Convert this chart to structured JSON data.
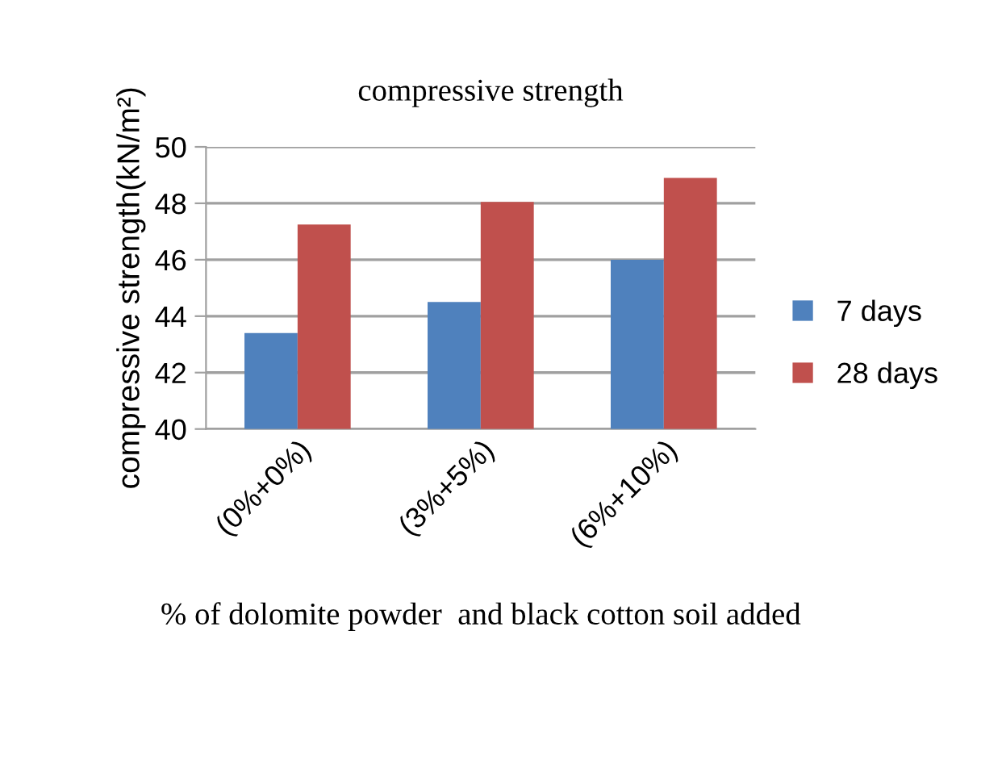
{
  "chart_data": {
    "type": "bar",
    "title": "compressive strength",
    "xlabel": "% of dolomite powder  and black cotton soil added",
    "ylabel": "compressive strength(kN/m²)",
    "categories": [
      "(0%+0%)",
      "(3%+5%)",
      "(6%+10%)"
    ],
    "series": [
      {
        "name": "7 days",
        "color": "#4f81bd",
        "values": [
          43.4,
          44.5,
          46.0
        ]
      },
      {
        "name": "28 days",
        "color": "#c0504d",
        "values": [
          47.25,
          48.05,
          48.9
        ]
      }
    ],
    "ylim": [
      40,
      50
    ],
    "yticks": [
      40,
      42,
      44,
      46,
      48,
      50
    ],
    "grid": "y",
    "legend": "right"
  }
}
